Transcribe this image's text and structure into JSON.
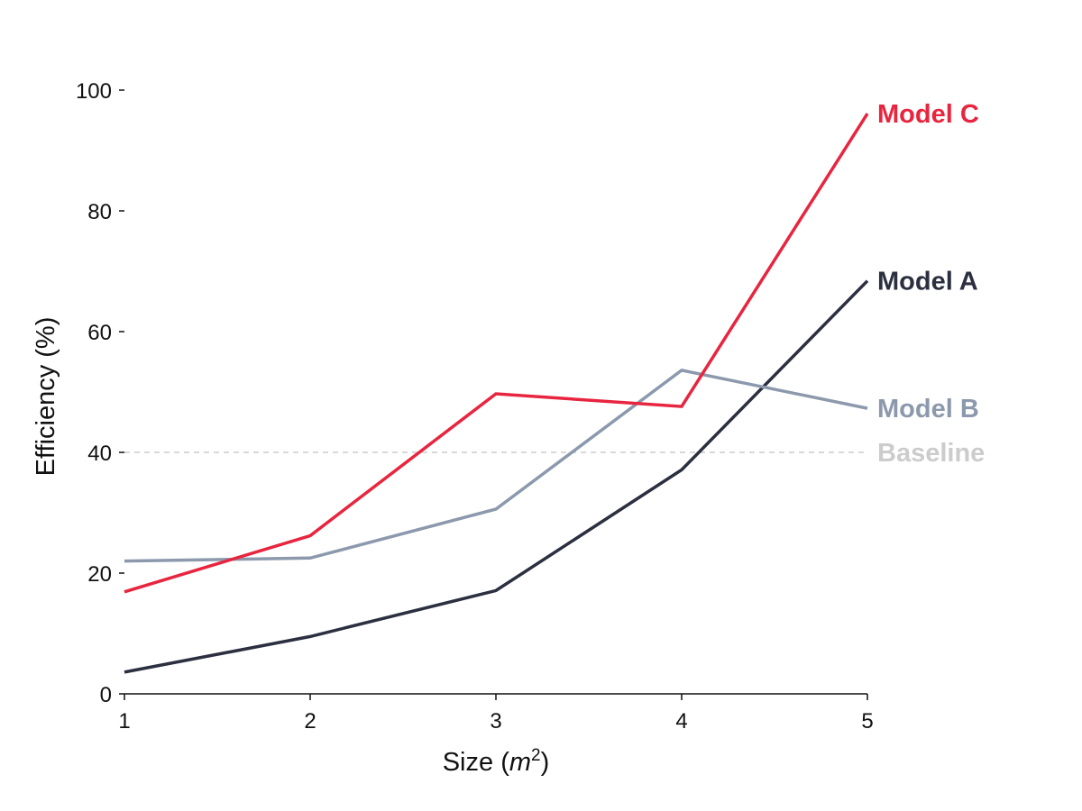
{
  "chart_data": {
    "type": "line",
    "title": "",
    "xlabel": "Size (m²)",
    "xlabel_parts": {
      "prefix": "Size (",
      "var": "m",
      "sup": "2",
      "suffix": ")"
    },
    "ylabel": "Efficiency (%)",
    "x": [
      1,
      2,
      3,
      4,
      5
    ],
    "xlim": [
      1,
      5
    ],
    "ylim": [
      0,
      100
    ],
    "x_ticks": [
      "1",
      "2",
      "3",
      "4",
      "5"
    ],
    "y_ticks": [
      "0",
      "20",
      "40",
      "60",
      "80",
      "100"
    ],
    "grid": false,
    "legend": "direct labels at line ends",
    "series": [
      {
        "name": "Model A",
        "color": "#2b2f40",
        "values": [
          3.6,
          9.5,
          17.1,
          37.1,
          68.4
        ]
      },
      {
        "name": "Model B",
        "color": "#8c99ad",
        "values": [
          22.0,
          22.5,
          30.6,
          53.6,
          47.3
        ]
      },
      {
        "name": "Model C",
        "color": "#e8253f",
        "values": [
          16.9,
          26.2,
          49.7,
          47.6,
          96.1
        ]
      }
    ],
    "reference_line": {
      "name": "Baseline",
      "value": 40,
      "color": "#cccccc",
      "style": "dashed"
    }
  }
}
